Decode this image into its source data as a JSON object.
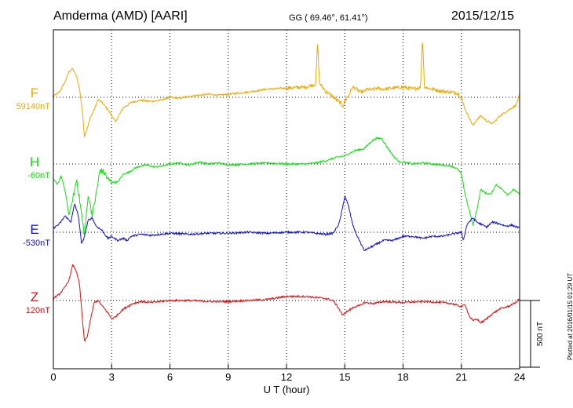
{
  "header": {
    "station": "Amderma (AMD)  [AARI]",
    "coords": "GG ( 69.46°,  61.41°)",
    "date": "2015/12/15"
  },
  "footer": {
    "plotted": "Plotted at 2016/01/15 01:29 UT"
  },
  "chart_data": {
    "type": "line",
    "xlabel": "U T (hour)",
    "xlim": [
      0,
      24
    ],
    "xticks": [
      "0",
      "3",
      "6",
      "9",
      "12",
      "15",
      "18",
      "21",
      "24"
    ],
    "scale_bar": {
      "label": "500 nT",
      "value": 500
    },
    "series": [
      {
        "name": "F",
        "baseline": "59140nT",
        "color": "#f0a800",
        "x": [
          0,
          0.3,
          0.6,
          0.8,
          1.0,
          1.2,
          1.35,
          1.5,
          1.6,
          1.75,
          1.9,
          2.1,
          2.3,
          2.5,
          2.8,
          3.0,
          3.2,
          3.4,
          3.6,
          3.8,
          4.0,
          4.5,
          5.0,
          5.5,
          6.0,
          6.5,
          7.0,
          7.5,
          8.0,
          8.5,
          9.0,
          10.0,
          11.0,
          12.0,
          13.0,
          13.5,
          13.6,
          13.7,
          14.0,
          14.3,
          14.6,
          14.8,
          14.9,
          15.0,
          15.2,
          15.4,
          15.6,
          15.8,
          16.0,
          16.2,
          16.4,
          16.6,
          17.0,
          17.5,
          18.0,
          18.5,
          18.9,
          19.0,
          19.1,
          19.5,
          20.0,
          20.5,
          20.8,
          21.0,
          21.2,
          21.4,
          21.6,
          21.8,
          22.0,
          22.3,
          22.6,
          23.0,
          23.4,
          23.8,
          24.0
        ],
        "y": [
          10,
          50,
          150,
          250,
          280,
          200,
          80,
          -150,
          -380,
          -300,
          -200,
          -120,
          -20,
          -50,
          -120,
          -180,
          -240,
          -170,
          -100,
          -80,
          -50,
          -30,
          -40,
          -30,
          0,
          -10,
          10,
          20,
          30,
          20,
          30,
          50,
          80,
          90,
          100,
          130,
          520,
          140,
          60,
          20,
          -30,
          -60,
          -90,
          -40,
          20,
          100,
          80,
          50,
          60,
          80,
          70,
          90,
          80,
          90,
          100,
          80,
          100,
          600,
          100,
          80,
          60,
          50,
          40,
          0,
          -120,
          -200,
          -280,
          -220,
          -180,
          -230,
          -260,
          -180,
          -130,
          -80,
          20
        ]
      },
      {
        "name": "H",
        "baseline": "-60nT",
        "color": "#10e010",
        "x": [
          0,
          0.2,
          0.4,
          0.6,
          0.8,
          1.0,
          1.2,
          1.4,
          1.6,
          1.8,
          2.0,
          2.2,
          2.4,
          2.6,
          2.8,
          3.0,
          3.3,
          3.6,
          3.9,
          4.2,
          4.5,
          4.8,
          5.2,
          5.6,
          6.0,
          6.5,
          7.0,
          7.5,
          8.0,
          8.5,
          9.0,
          10.0,
          11.0,
          12.0,
          13.0,
          13.5,
          14.0,
          14.5,
          15.0,
          15.5,
          16.0,
          16.3,
          16.6,
          16.9,
          17.2,
          17.5,
          17.8,
          18.0,
          18.5,
          19.0,
          19.5,
          20.0,
          20.5,
          20.8,
          21.0,
          21.2,
          21.4,
          21.6,
          21.8,
          22.0,
          22.2,
          22.5,
          22.8,
          23.1,
          23.4,
          23.7,
          24.0
        ],
        "y": [
          -150,
          -200,
          -120,
          -260,
          -500,
          -350,
          -150,
          -420,
          -700,
          -300,
          -500,
          -300,
          -60,
          -80,
          -150,
          -180,
          -180,
          -100,
          -80,
          -40,
          -20,
          -10,
          -30,
          -20,
          0,
          10,
          -10,
          20,
          0,
          10,
          -10,
          0,
          10,
          0,
          0,
          10,
          30,
          60,
          80,
          130,
          150,
          210,
          250,
          250,
          160,
          80,
          20,
          20,
          0,
          10,
          0,
          -10,
          -20,
          -50,
          -100,
          -300,
          -450,
          -600,
          -450,
          -250,
          -280,
          -300,
          -200,
          -250,
          -300,
          -250,
          -300
        ]
      },
      {
        "name": "E",
        "baseline": "-530nT",
        "color": "#1010e0",
        "x": [
          0,
          0.3,
          0.6,
          0.9,
          1.1,
          1.3,
          1.45,
          1.6,
          1.8,
          2.0,
          2.2,
          2.5,
          2.8,
          3.0,
          3.3,
          3.6,
          3.8,
          4.0,
          4.5,
          5.0,
          5.5,
          6.0,
          7.0,
          8.0,
          9.0,
          10.0,
          11.0,
          12.0,
          13.0,
          14.0,
          14.4,
          14.7,
          14.9,
          15.0,
          15.2,
          15.4,
          15.6,
          15.8,
          16.0,
          16.3,
          16.6,
          17.0,
          17.5,
          18.0,
          18.5,
          19.0,
          19.5,
          20.0,
          20.5,
          21.0,
          21.1,
          21.3,
          21.6,
          21.8,
          22.0,
          22.3,
          22.6,
          23.0,
          23.3,
          23.6,
          24.0
        ],
        "y": [
          40,
          80,
          160,
          100,
          280,
          150,
          -120,
          -40,
          120,
          140,
          60,
          20,
          -60,
          -40,
          -80,
          -60,
          -80,
          -40,
          -20,
          -30,
          -20,
          -10,
          -20,
          -10,
          -10,
          0,
          -10,
          0,
          0,
          -20,
          -10,
          80,
          250,
          360,
          250,
          80,
          -20,
          -100,
          -180,
          -150,
          -120,
          -80,
          -80,
          -40,
          -40,
          -60,
          -40,
          -40,
          -20,
          0,
          -80,
          80,
          140,
          100,
          80,
          50,
          100,
          80,
          60,
          70,
          40
        ]
      },
      {
        "name": "Z",
        "baseline": "120nT",
        "color": "#e01010",
        "x": [
          0,
          0.3,
          0.6,
          0.8,
          1.0,
          1.2,
          1.35,
          1.5,
          1.6,
          1.75,
          1.9,
          2.1,
          2.3,
          2.5,
          2.8,
          3.0,
          3.2,
          3.5,
          3.8,
          4.1,
          4.5,
          5.0,
          5.5,
          6.0,
          7.0,
          8.0,
          9.0,
          10.0,
          11.0,
          12.0,
          13.0,
          13.5,
          14.0,
          14.4,
          14.7,
          14.9,
          15.0,
          15.2,
          15.5,
          15.8,
          16.0,
          16.5,
          17.0,
          18.0,
          19.0,
          20.0,
          20.5,
          21.0,
          21.2,
          21.4,
          21.6,
          21.8,
          22.0,
          22.3,
          22.6,
          23.0,
          23.4,
          23.8,
          24.0
        ],
        "y": [
          20,
          60,
          130,
          200,
          350,
          280,
          150,
          -200,
          -400,
          -350,
          -200,
          -20,
          0,
          -50,
          -120,
          -180,
          -160,
          -100,
          -60,
          -30,
          -10,
          -20,
          -10,
          0,
          0,
          -10,
          -10,
          0,
          10,
          40,
          40,
          30,
          20,
          0,
          -80,
          -150,
          -120,
          -100,
          -60,
          -50,
          -20,
          -30,
          -10,
          -20,
          -10,
          -20,
          -30,
          -60,
          -40,
          -150,
          -200,
          -180,
          -220,
          -180,
          -130,
          -80,
          -60,
          -20,
          20
        ]
      }
    ]
  }
}
